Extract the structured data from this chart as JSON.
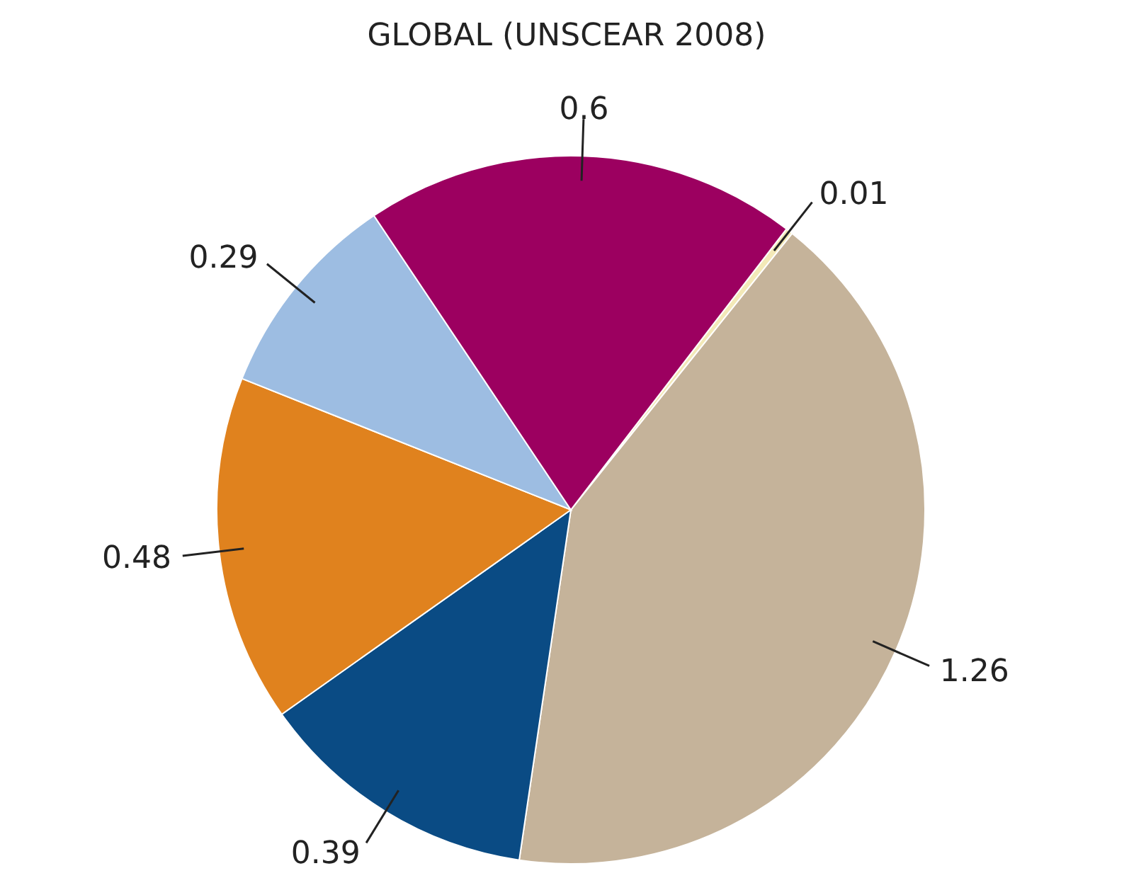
{
  "chart_data": {
    "type": "pie",
    "title": "GLOBAL (UNSCEAR 2008)",
    "categories": [
      null,
      null,
      null,
      null,
      null,
      null
    ],
    "values": [
      0.01,
      1.26,
      0.39,
      0.48,
      0.29,
      0.6
    ],
    "colors": [
      "#f3e9b8",
      "#c5b39a",
      "#0a4b84",
      "#e0821e",
      "#9dbde2",
      "#9c0060"
    ],
    "data_labels": true
  }
}
